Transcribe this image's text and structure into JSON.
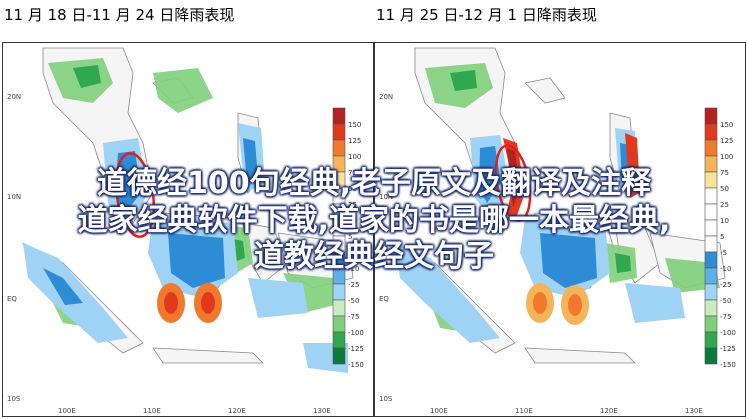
{
  "panels": [
    {
      "title": "11 月 18 日-11 月 24 日降雨表现",
      "lat_labels": [
        "20N",
        "10N",
        "EQ",
        "10S"
      ],
      "lon_labels": [
        "100E",
        "110E",
        "120E",
        "130E"
      ],
      "legend": [
        "150",
        "125",
        "100",
        "75",
        "50",
        "25",
        "10",
        "5",
        "-5",
        "-10",
        "-25",
        "-50",
        "-75",
        "-100",
        "-125",
        "-150"
      ]
    },
    {
      "title": "11 月 25 日-12 月 1 日降雨表现",
      "lat_labels": [
        "20N",
        "10N",
        "EQ",
        "10S"
      ],
      "lon_labels": [
        "100E",
        "110E",
        "120E",
        "130E"
      ],
      "legend": [
        "150",
        "125",
        "100",
        "75",
        "50",
        "25",
        "10",
        "5",
        "-5",
        "-10",
        "-25",
        "-50",
        "-75",
        "-100",
        "-125",
        "-150"
      ]
    }
  ],
  "legend_colors": [
    "#b22222",
    "#e03a1e",
    "#f2792b",
    "#f7b35a",
    "#fbe29a",
    "#ffffff",
    "#ffffff",
    "#ffffff",
    "#ffffff",
    "#2e8bd6",
    "#5fb0e8",
    "#9fd3f5",
    "#c8ecc0",
    "#7fcf7a",
    "#2fa84f",
    "#0a7a3a"
  ],
  "overlay": {
    "line1": "道德经100句经典,老子原文及翻译及注释",
    "line2": "道家经典软件下载,道家的书是哪一本最经典,",
    "line3": "道教经典经文句子"
  }
}
